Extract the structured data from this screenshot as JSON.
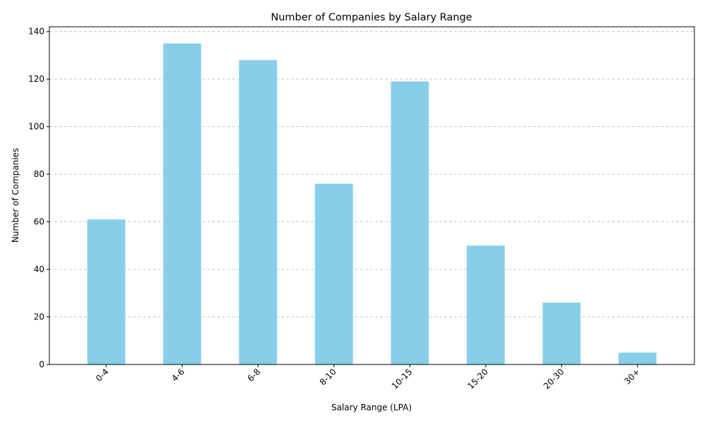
{
  "chart_data": {
    "type": "bar",
    "title": "Number of Companies by Salary Range",
    "xlabel": "Salary Range (LPA)",
    "ylabel": "Number of Companies",
    "categories": [
      "0-4",
      "4-6",
      "6-8",
      "8-10",
      "10-15",
      "15-20",
      "20-30",
      "30+"
    ],
    "values": [
      61,
      135,
      128,
      76,
      119,
      50,
      26,
      5
    ],
    "ylim": [
      0,
      142
    ],
    "yticks": [
      0,
      20,
      40,
      60,
      80,
      100,
      120,
      140
    ],
    "ytick_labels": [
      "0",
      "20",
      "40",
      "60",
      "80",
      "100",
      "120",
      "140"
    ],
    "grid": "y-dashed",
    "bar_color": "#87ceeb",
    "grid_color": "#c0c0c0",
    "x_tick_rotation_deg": 45
  }
}
